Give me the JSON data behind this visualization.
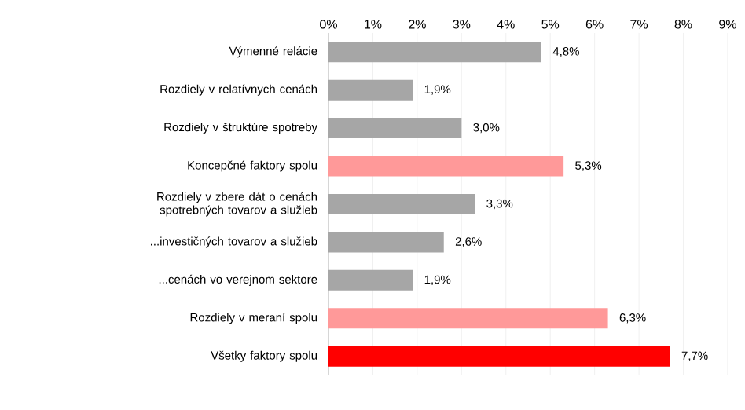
{
  "chart_data": {
    "type": "bar",
    "orientation": "horizontal",
    "categories": [
      "Výmenné relácie",
      "Rozdiely v relatívnych cenách",
      "Rozdiely v štruktúre spotreby",
      "Koncepčné faktory spolu",
      "Rozdiely v zbere dát o cenách spotrebných tovarov a služieb",
      "...investičných tovarov a služieb",
      "...cenách vo verejnom sektore",
      "Rozdiely v meraní spolu",
      "Všetky faktory spolu"
    ],
    "values": [
      4.8,
      1.9,
      3.0,
      5.3,
      3.3,
      2.6,
      1.9,
      6.3,
      7.7
    ],
    "colors": [
      "#a6a6a6",
      "#a6a6a6",
      "#a6a6a6",
      "#ff9999",
      "#a6a6a6",
      "#a6a6a6",
      "#a6a6a6",
      "#ff9999",
      "#ff0000"
    ],
    "value_labels": [
      "4,8%",
      "1,9%",
      "3,0%",
      "5,3%",
      "3,3%",
      "2,6%",
      "1,9%",
      "6,3%",
      "7,7%"
    ],
    "xlim": [
      0,
      9
    ],
    "xticks": [
      {
        "value": 0,
        "label": "0%"
      },
      {
        "value": 1,
        "label": "1%"
      },
      {
        "value": 2,
        "label": "2%"
      },
      {
        "value": 3,
        "label": "3%"
      },
      {
        "value": 4,
        "label": "4%"
      },
      {
        "value": 5,
        "label": "5%"
      },
      {
        "value": 6,
        "label": "6%"
      },
      {
        "value": 7,
        "label": "7%"
      },
      {
        "value": 8,
        "label": "8%"
      },
      {
        "value": 9,
        "label": "9%"
      }
    ],
    "grid": "x"
  }
}
